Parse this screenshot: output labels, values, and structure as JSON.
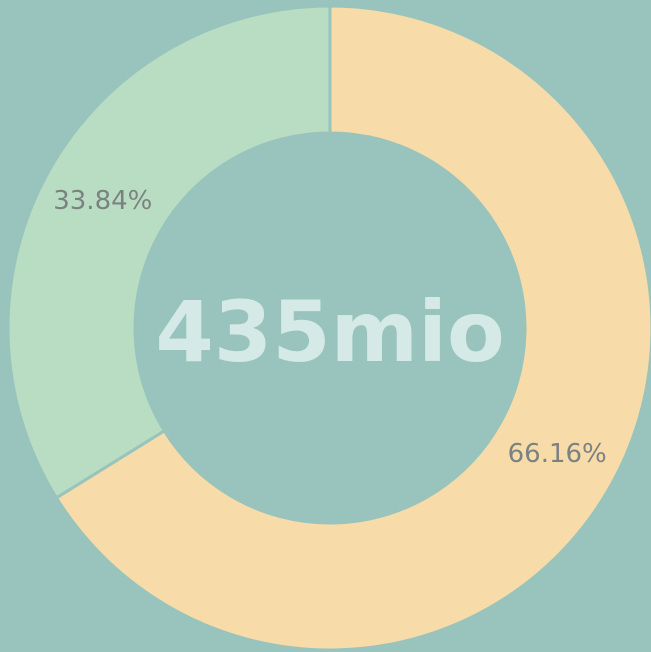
{
  "chart_data": {
    "type": "donut",
    "values": [
      66.16,
      33.84
    ],
    "value_labels": [
      "66.16%",
      "33.84%"
    ],
    "colors": [
      "#f7dba8",
      "#b9ddc2"
    ],
    "center_label": "435mio"
  }
}
